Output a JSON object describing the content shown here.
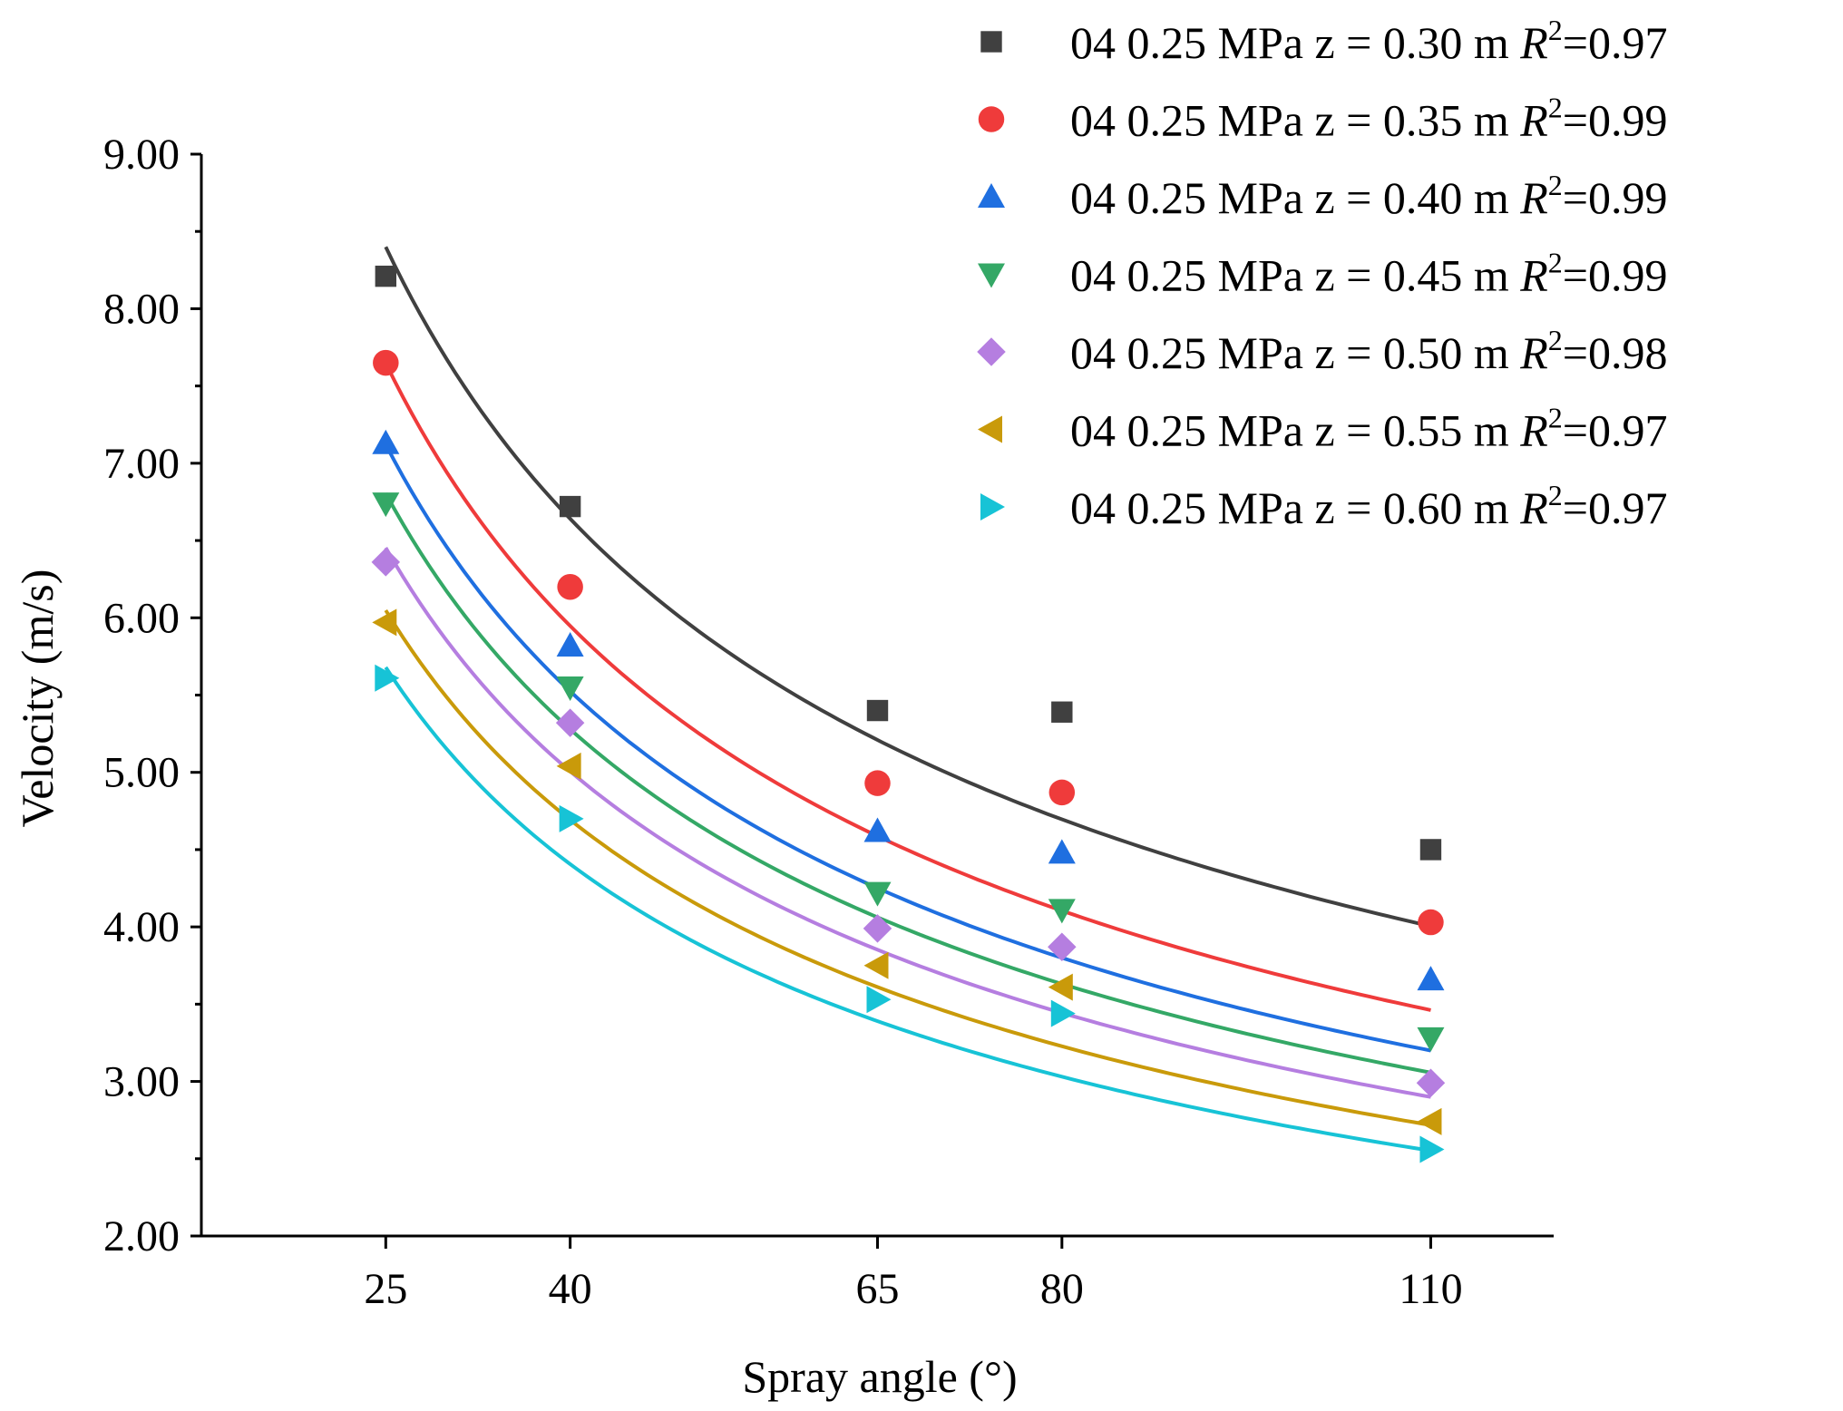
{
  "chart_data": {
    "type": "scatter",
    "title": "",
    "xlabel": "Spray angle (°)",
    "ylabel": "Velocity (m/s)",
    "xlim": [
      10,
      120
    ],
    "ylim": [
      2.0,
      9.0
    ],
    "x": [
      25,
      40,
      65,
      80,
      110
    ],
    "xticks": [
      25,
      40,
      65,
      80,
      110
    ],
    "xtick_labels": [
      "25",
      "40",
      "65",
      "80",
      "110"
    ],
    "yticks": [
      2,
      3,
      4,
      5,
      6,
      7,
      8,
      9
    ],
    "ytick_labels": [
      "2.00",
      "3.00",
      "4.00",
      "5.00",
      "6.00",
      "7.00",
      "8.00",
      "9.00"
    ],
    "legend_position": "top-right",
    "fit": "power-law trend line per series",
    "series": [
      {
        "name": "04 0.25 MPa z = 0.30 m",
        "r2_label": "R",
        "r2_exp": "2",
        "r2_value": "=0.97",
        "marker": "square",
        "color": "#404040",
        "values": [
          8.21,
          6.72,
          5.4,
          5.39,
          4.5
        ],
        "fit_coef": [
          42.0,
          0.5
        ]
      },
      {
        "name": "04 0.25 MPa z = 0.35 m",
        "r2_label": "R",
        "r2_exp": "2",
        "r2_value": "=0.99",
        "marker": "circle",
        "color": "#ef3b3b",
        "values": [
          7.65,
          6.2,
          4.93,
          4.87,
          4.03
        ],
        "fit_coef": [
          42.8,
          0.535
        ]
      },
      {
        "name": "04 0.25 MPa z = 0.40 m",
        "r2_label": "R",
        "r2_exp": "2",
        "r2_value": "=0.99",
        "marker": "triangle-up",
        "color": "#1f6fe0",
        "values": [
          7.13,
          5.82,
          4.62,
          4.48,
          3.66
        ],
        "fit_coef": [
          40.5,
          0.54
        ]
      },
      {
        "name": "04 0.25 MPa z = 0.45 m",
        "r2_label": "R",
        "r2_exp": "2",
        "r2_value": "=0.99",
        "marker": "triangle-down",
        "color": "#34a866",
        "values": [
          6.74,
          5.55,
          4.22,
          4.11,
          3.28
        ],
        "fit_coef": [
          38.7,
          0.54
        ]
      },
      {
        "name": "04 0.25 MPa z = 0.50 m",
        "r2_label": "R",
        "r2_exp": "2",
        "r2_value": "=0.98",
        "marker": "diamond",
        "color": "#b57ee0",
        "values": [
          6.36,
          5.32,
          3.99,
          3.87,
          2.99
        ],
        "fit_coef": [
          36.7,
          0.54
        ]
      },
      {
        "name": "04 0.25 MPa z = 0.55 m",
        "r2_label": "R",
        "r2_exp": "2",
        "r2_value": "=0.97",
        "marker": "triangle-left",
        "color": "#c99a0a",
        "values": [
          5.97,
          5.04,
          3.75,
          3.61,
          2.74
        ],
        "fit_coef": [
          34.4,
          0.54
        ]
      },
      {
        "name": "04 0.25 MPa z = 0.60 m",
        "r2_label": "R",
        "r2_exp": "2",
        "r2_value": "=0.97",
        "marker": "triangle-right",
        "color": "#17c3d6",
        "values": [
          5.61,
          4.7,
          3.53,
          3.44,
          2.56
        ],
        "fit_coef": [
          32.3,
          0.54
        ]
      }
    ]
  }
}
